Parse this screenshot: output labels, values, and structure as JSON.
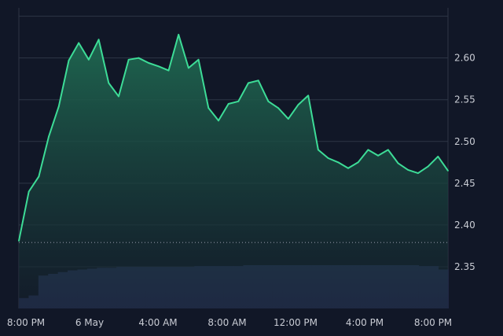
{
  "chart_data": {
    "type": "area",
    "title": "",
    "xlabel": "",
    "ylabel": "",
    "ylim": [
      2.3,
      2.66
    ],
    "y_ticks": [
      "2.35",
      "2.40",
      "2.45",
      "2.50",
      "2.55",
      "2.60"
    ],
    "x_ticks": [
      "8:00 PM",
      "6 May",
      "4:00 AM",
      "8:00 AM",
      "12:00 PM",
      "4:00 PM",
      "8:00 PM"
    ],
    "grid": true,
    "reference_line": 2.379,
    "colors": {
      "background": "#111727",
      "line": "#3ddc97",
      "area_top": "#1f6b52",
      "area_bottom": "#141e2b",
      "grid": "#2e3646",
      "volume": "#2e3a66",
      "volume_edge": "#3c4a80",
      "reference": "#8a90a0"
    },
    "series": [
      {
        "x": [
          "8:00 PM",
          "9:00 PM",
          "10:00 PM",
          "11:00 PM",
          "6 May",
          "1:00 AM",
          "2:00 AM",
          "2:30 AM",
          "3:00 AM",
          "3:30 AM",
          "4:00 AM",
          "4:30 AM",
          "5:00 AM",
          "5:30 AM",
          "6:00 AM",
          "6:30 AM",
          "7:00 AM",
          "7:30 AM",
          "8:00 AM",
          "8:30 AM",
          "9:00 AM",
          "9:30 AM",
          "10:00 AM",
          "10:30 AM",
          "11:00 AM",
          "11:30 AM",
          "12:00 PM",
          "12:30 PM",
          "1:00 PM",
          "1:30 PM",
          "2:00 PM",
          "2:30 PM",
          "3:00 PM",
          "3:30 PM",
          "4:00 PM",
          "4:30 PM",
          "5:00 PM",
          "5:30 PM",
          "6:00 PM",
          "6:30 PM",
          "7:00 PM",
          "7:30 PM",
          "8:00 PM",
          "8:30 PM"
        ],
        "values": [
          2.381,
          2.44,
          2.458,
          2.506,
          2.542,
          2.597,
          2.618,
          2.598,
          2.622,
          2.57,
          2.554,
          2.598,
          2.6,
          2.594,
          2.59,
          2.585,
          2.628,
          2.588,
          2.598,
          2.54,
          2.525,
          2.545,
          2.548,
          2.57,
          2.573,
          2.548,
          2.54,
          2.527,
          2.544,
          2.555,
          2.49,
          2.48,
          2.475,
          2.468,
          2.475,
          2.49,
          2.483,
          2.49,
          2.474,
          2.466,
          2.462,
          2.47,
          2.482,
          2.465
        ]
      }
    ],
    "volume": [
      0.12,
      0.15,
      0.38,
      0.4,
      0.42,
      0.44,
      0.45,
      0.46,
      0.47,
      0.47,
      0.48,
      0.48,
      0.48,
      0.48,
      0.48,
      0.48,
      0.48,
      0.48,
      0.49,
      0.49,
      0.49,
      0.49,
      0.49,
      0.5,
      0.5,
      0.5,
      0.5,
      0.5,
      0.5,
      0.5,
      0.5,
      0.5,
      0.5,
      0.5,
      0.5,
      0.5,
      0.5,
      0.5,
      0.5,
      0.5,
      0.5,
      0.49,
      0.49,
      0.45
    ]
  }
}
